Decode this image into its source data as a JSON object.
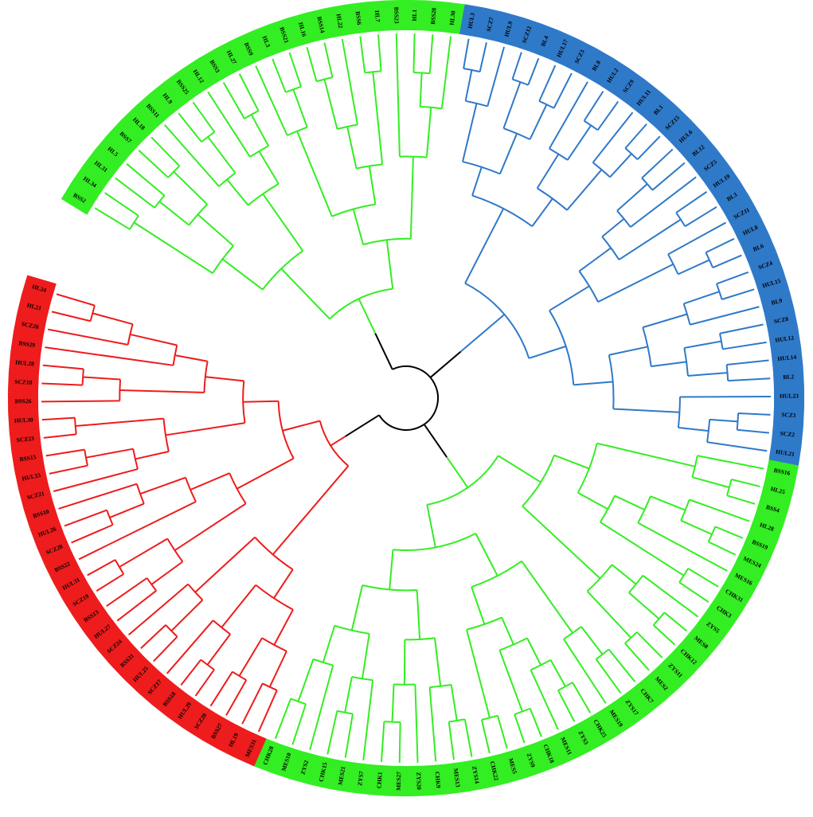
{
  "tree": {
    "clades": [
      {
        "color": "#33ee22",
        "leaves": [
          "BSS2",
          "HL34",
          "HL31",
          "HL5",
          "BSS7",
          "HL18",
          "BSS11",
          "HL9",
          "BSS25",
          "HL12",
          "BSS3",
          "HL27",
          "BSS9",
          "HL3",
          "BSS21",
          "HL16",
          "BSS14",
          "HL22",
          "BSS6",
          "HL7",
          "BSS23",
          "HL1",
          "BSS28",
          "HL30"
        ]
      },
      {
        "color": "#2f79c9",
        "leaves": [
          "HUL3",
          "SCZ7",
          "HUL9",
          "SCZ12",
          "BL4",
          "HUL17",
          "SCZ3",
          "BL8",
          "HUL2",
          "SCZ9",
          "HUL11",
          "BL1",
          "SCZ15",
          "HUL6",
          "BL12",
          "SCZ5",
          "HUL19",
          "BL3",
          "SCZ11",
          "HUL8",
          "BL6",
          "SCZ4",
          "HUL15",
          "BL9",
          "SCZ8",
          "HUL12",
          "HUL14",
          "BL2",
          "HUL23",
          "SCZ1",
          "SCZ2",
          "HUL21"
        ]
      },
      {
        "color": "#33ee22",
        "leaves": [
          "BSS16",
          "HL25",
          "BSS4",
          "HL28",
          "BSS19",
          "MES24",
          "MES16",
          "CHK31",
          "CHK3",
          "ZYS5",
          "MES8",
          "CHK12",
          "ZYS11",
          "MES2",
          "CHK7",
          "ZYS17",
          "MES19",
          "CHK25",
          "ZYS3",
          "MES11",
          "CHK18",
          "ZYS9",
          "MES5",
          "CHK22",
          "ZYS14",
          "MES13",
          "CHK9",
          "ZYS20",
          "MES27",
          "CHK1",
          "ZYS7",
          "MES21",
          "CHK15",
          "ZYS2",
          "MES10",
          "CHK28"
        ]
      },
      {
        "color": "#ee1c1c",
        "leaves": [
          "MES31",
          "HL19",
          "BSS27",
          "SCZ20",
          "HUL29",
          "BSS18",
          "SCZ17",
          "HUL25",
          "BSS31",
          "SCZ24",
          "HUL27",
          "BSS13",
          "SCZ19",
          "HUL31",
          "BSS22",
          "SCZ28",
          "HUL26",
          "BSS10",
          "SCZ21",
          "HUL33",
          "BSS15",
          "SCZ23",
          "HUL30",
          "BSS26",
          "SCZ18",
          "HUL28",
          "BSS29",
          "SCZ26",
          "HL21",
          "HL24"
        ]
      }
    ]
  }
}
